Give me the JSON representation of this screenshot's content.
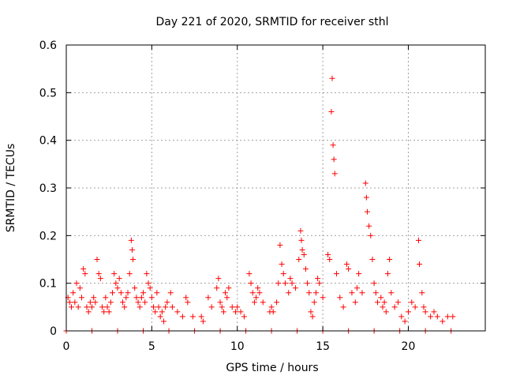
{
  "chart_data": {
    "type": "scatter",
    "title": "Day 221 of 2020, SRMTID for receiver sthl",
    "xlabel": "GPS time / hours",
    "ylabel": "SRMTID / TECUs",
    "xlim": [
      0,
      24.5
    ],
    "ylim": [
      0,
      0.6
    ],
    "xticks": [
      0,
      5,
      10,
      15,
      20
    ],
    "xtick_labels": [
      "0",
      "5",
      "10",
      "15",
      "20"
    ],
    "yticks": [
      0,
      0.1,
      0.2,
      0.3,
      0.4,
      0.5,
      0.6
    ],
    "ytick_labels": [
      "0",
      "0.1",
      "0.2",
      "0.3",
      "0.4",
      "0.5",
      "0.6"
    ],
    "grid": true,
    "marker": "plus",
    "color": "#ff0000",
    "series": [
      {
        "name": "SRMTID",
        "points": [
          [
            0.1,
            0.07
          ],
          [
            0.2,
            0.06
          ],
          [
            0.3,
            0.05
          ],
          [
            0.4,
            0.08
          ],
          [
            0.5,
            0.06
          ],
          [
            0.6,
            0.1
          ],
          [
            0.7,
            0.05
          ],
          [
            0.8,
            0.09
          ],
          [
            0.9,
            0.07
          ],
          [
            1.0,
            0.13
          ],
          [
            1.1,
            0.12
          ],
          [
            1.2,
            0.05
          ],
          [
            1.3,
            0.04
          ],
          [
            1.4,
            0.06
          ],
          [
            1.5,
            0.05
          ],
          [
            1.6,
            0.07
          ],
          [
            1.7,
            0.06
          ],
          [
            1.8,
            0.15
          ],
          [
            1.9,
            0.12
          ],
          [
            2.0,
            0.11
          ],
          [
            2.1,
            0.05
          ],
          [
            2.2,
            0.04
          ],
          [
            2.3,
            0.07
          ],
          [
            2.4,
            0.05
          ],
          [
            2.5,
            0.04
          ],
          [
            2.6,
            0.06
          ],
          [
            2.7,
            0.08
          ],
          [
            2.8,
            0.12
          ],
          [
            2.9,
            0.1
          ],
          [
            3.0,
            0.09
          ],
          [
            3.1,
            0.11
          ],
          [
            3.2,
            0.08
          ],
          [
            3.3,
            0.06
          ],
          [
            3.4,
            0.05
          ],
          [
            3.5,
            0.07
          ],
          [
            3.6,
            0.08
          ],
          [
            3.7,
            0.12
          ],
          [
            3.8,
            0.19
          ],
          [
            3.85,
            0.17
          ],
          [
            3.9,
            0.15
          ],
          [
            4.0,
            0.09
          ],
          [
            4.1,
            0.07
          ],
          [
            4.2,
            0.06
          ],
          [
            4.3,
            0.05
          ],
          [
            4.4,
            0.07
          ],
          [
            4.5,
            0.08
          ],
          [
            4.6,
            0.06
          ],
          [
            4.7,
            0.12
          ],
          [
            4.8,
            0.1
          ],
          [
            4.9,
            0.09
          ],
          [
            5.0,
            0.07
          ],
          [
            5.1,
            0.05
          ],
          [
            5.2,
            0.04
          ],
          [
            5.3,
            0.08
          ],
          [
            5.4,
            0.05
          ],
          [
            5.5,
            0.03
          ],
          [
            5.6,
            0.04
          ],
          [
            5.7,
            0.02
          ],
          [
            5.8,
            0.05
          ],
          [
            5.9,
            0.06
          ],
          [
            6.1,
            0.08
          ],
          [
            6.2,
            0.05
          ],
          [
            6.5,
            0.04
          ],
          [
            6.8,
            0.03
          ],
          [
            7.0,
            0.07
          ],
          [
            7.1,
            0.06
          ],
          [
            7.4,
            0.03
          ],
          [
            7.9,
            0.03
          ],
          [
            8.0,
            0.02
          ],
          [
            8.3,
            0.07
          ],
          [
            8.5,
            0.05
          ],
          [
            8.8,
            0.09
          ],
          [
            8.9,
            0.11
          ],
          [
            9.0,
            0.06
          ],
          [
            9.1,
            0.05
          ],
          [
            9.2,
            0.04
          ],
          [
            9.3,
            0.08
          ],
          [
            9.4,
            0.07
          ],
          [
            9.5,
            0.09
          ],
          [
            9.7,
            0.05
          ],
          [
            9.9,
            0.04
          ],
          [
            10.0,
            0.05
          ],
          [
            10.2,
            0.04
          ],
          [
            10.4,
            0.03
          ],
          [
            10.7,
            0.12
          ],
          [
            10.8,
            0.1
          ],
          [
            10.9,
            0.08
          ],
          [
            11.0,
            0.06
          ],
          [
            11.1,
            0.07
          ],
          [
            11.2,
            0.09
          ],
          [
            11.3,
            0.08
          ],
          [
            11.5,
            0.06
          ],
          [
            11.9,
            0.04
          ],
          [
            12.0,
            0.05
          ],
          [
            12.1,
            0.04
          ],
          [
            12.3,
            0.06
          ],
          [
            12.4,
            0.1
          ],
          [
            12.5,
            0.18
          ],
          [
            12.6,
            0.14
          ],
          [
            12.7,
            0.12
          ],
          [
            12.8,
            0.1
          ],
          [
            13.0,
            0.08
          ],
          [
            13.1,
            0.11
          ],
          [
            13.2,
            0.1
          ],
          [
            13.4,
            0.09
          ],
          [
            13.6,
            0.15
          ],
          [
            13.7,
            0.21
          ],
          [
            13.75,
            0.19
          ],
          [
            13.8,
            0.17
          ],
          [
            13.9,
            0.16
          ],
          [
            14.0,
            0.13
          ],
          [
            14.1,
            0.1
          ],
          [
            14.2,
            0.08
          ],
          [
            14.3,
            0.04
          ],
          [
            14.4,
            0.03
          ],
          [
            14.5,
            0.06
          ],
          [
            14.6,
            0.08
          ],
          [
            14.7,
            0.11
          ],
          [
            14.8,
            0.1
          ],
          [
            15.0,
            0.07
          ],
          [
            15.3,
            0.16
          ],
          [
            15.4,
            0.15
          ],
          [
            15.5,
            0.46
          ],
          [
            15.55,
            0.53
          ],
          [
            15.6,
            0.39
          ],
          [
            15.65,
            0.36
          ],
          [
            15.7,
            0.33
          ],
          [
            15.8,
            0.12
          ],
          [
            16.0,
            0.07
          ],
          [
            16.2,
            0.05
          ],
          [
            16.4,
            0.14
          ],
          [
            16.5,
            0.13
          ],
          [
            16.7,
            0.08
          ],
          [
            16.9,
            0.06
          ],
          [
            17.0,
            0.09
          ],
          [
            17.1,
            0.12
          ],
          [
            17.3,
            0.08
          ],
          [
            17.5,
            0.31
          ],
          [
            17.55,
            0.28
          ],
          [
            17.6,
            0.25
          ],
          [
            17.7,
            0.22
          ],
          [
            17.8,
            0.2
          ],
          [
            17.9,
            0.15
          ],
          [
            18.0,
            0.1
          ],
          [
            18.1,
            0.08
          ],
          [
            18.2,
            0.06
          ],
          [
            18.4,
            0.07
          ],
          [
            18.5,
            0.05
          ],
          [
            18.6,
            0.06
          ],
          [
            18.7,
            0.04
          ],
          [
            18.8,
            0.12
          ],
          [
            18.9,
            0.15
          ],
          [
            19.0,
            0.08
          ],
          [
            19.2,
            0.05
          ],
          [
            19.4,
            0.06
          ],
          [
            19.6,
            0.03
          ],
          [
            19.8,
            0.02
          ],
          [
            20.0,
            0.04
          ],
          [
            20.2,
            0.06
          ],
          [
            20.4,
            0.05
          ],
          [
            20.6,
            0.19
          ],
          [
            20.65,
            0.14
          ],
          [
            20.8,
            0.08
          ],
          [
            20.9,
            0.05
          ],
          [
            21.0,
            0.04
          ],
          [
            21.3,
            0.03
          ],
          [
            21.5,
            0.04
          ],
          [
            21.7,
            0.03
          ],
          [
            22.0,
            0.02
          ],
          [
            22.3,
            0.03
          ],
          [
            22.6,
            0.03
          ],
          [
            0.0,
            0.0
          ],
          [
            1.5,
            0.0
          ],
          [
            3.0,
            0.0
          ],
          [
            4.5,
            0.0
          ],
          [
            6.0,
            0.0
          ],
          [
            7.5,
            0.0
          ],
          [
            9.0,
            0.0
          ],
          [
            10.5,
            0.0
          ],
          [
            12.0,
            0.0
          ],
          [
            13.5,
            0.0
          ],
          [
            15.0,
            0.0
          ],
          [
            16.5,
            0.0
          ],
          [
            18.0,
            0.0
          ],
          [
            19.5,
            0.0
          ],
          [
            21.0,
            0.0
          ],
          [
            22.5,
            0.0
          ]
        ]
      }
    ]
  }
}
